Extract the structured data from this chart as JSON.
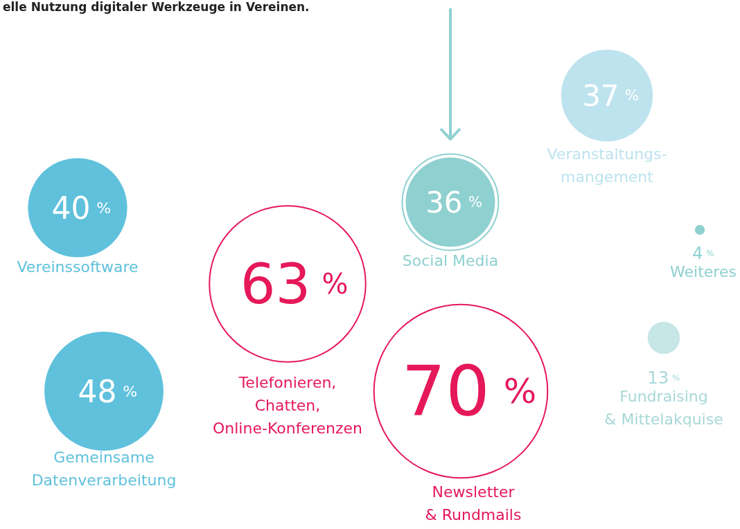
{
  "chart_data": {
    "type": "other",
    "title": "elle Nutzung digitaler Werkzeuge in Vereinen.",
    "categories": [
      "Vereinssoftware",
      "Gemeinsame\nDatenverarbeitung",
      "Telefonieren,\nChatten,\nOnline-Konferenzen",
      "Newsletter\n& Rundmails",
      "Social Media",
      "Veranstaltungs-\nmangement",
      "Weiteres",
      "Fundraising\n& Mittelakquise"
    ],
    "values": [
      40,
      48,
      63,
      70,
      36,
      37,
      4,
      13
    ],
    "value_labels": [
      "40 %",
      "48 %",
      "63 %",
      "70 %",
      "36 %",
      "37 %",
      "4 %",
      "13 %"
    ],
    "colors": [
      "#5fc1dc",
      "#5fc1dc",
      "#e5185a",
      "#e5185a",
      "#8fd0d0",
      "#bde3ee",
      "#8fd0d0",
      "#c7e6e6"
    ]
  }
}
